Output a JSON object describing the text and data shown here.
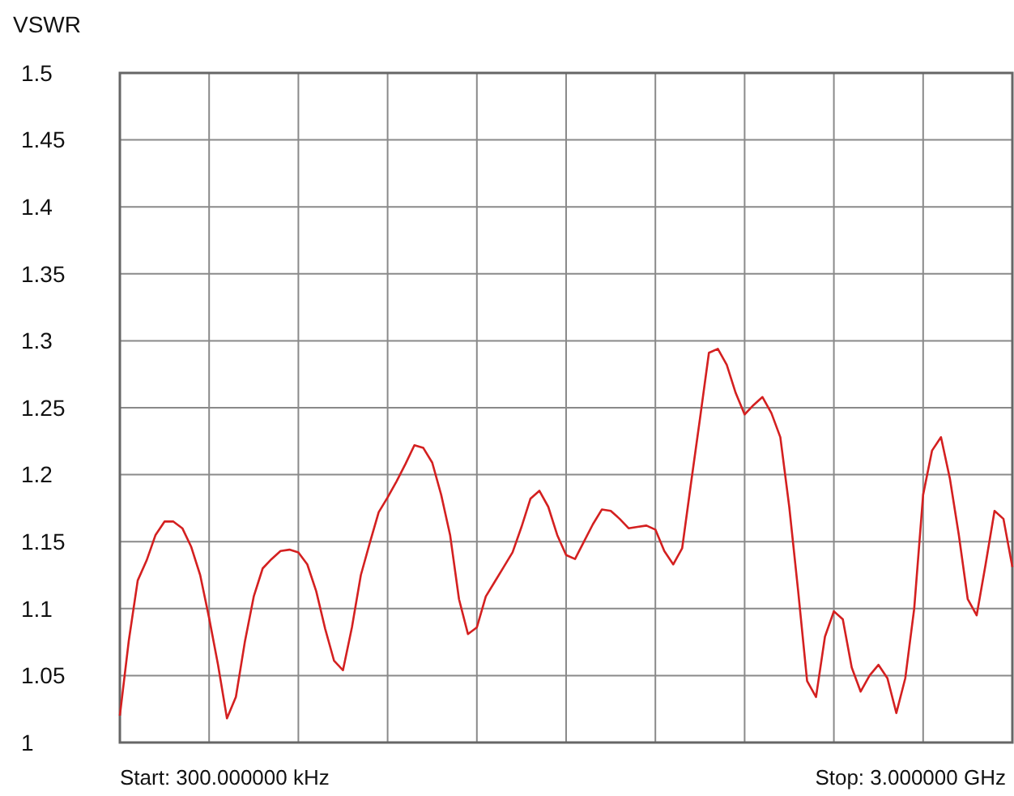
{
  "chart_data": {
    "type": "line",
    "ylabel": "VSWR",
    "categories": [
      null,
      null,
      null,
      null,
      null,
      null,
      null,
      null,
      null,
      null,
      null,
      null,
      null,
      null,
      null,
      null,
      null,
      null,
      null,
      null,
      null,
      null,
      null,
      null,
      null,
      null,
      null,
      null,
      null,
      null,
      null,
      null,
      null,
      null,
      null,
      null,
      null,
      null,
      null,
      null,
      null,
      null,
      null,
      null,
      null,
      null,
      null,
      null,
      null,
      null,
      null,
      null,
      null,
      null,
      null,
      null,
      null,
      null,
      null,
      null,
      null,
      null,
      null,
      null,
      null,
      null,
      null,
      null,
      null,
      null,
      null,
      null,
      null,
      null,
      null,
      null,
      null,
      null,
      null,
      null,
      null,
      null,
      null,
      null,
      null,
      null,
      null,
      null,
      null,
      null,
      null,
      null,
      null,
      null,
      null,
      null,
      null,
      null,
      null,
      null,
      null
    ],
    "series": [
      {
        "color": "#d42020",
        "values": [
          1.02,
          1.076,
          1.121,
          1.136,
          1.155,
          1.165,
          1.165,
          1.16,
          1.146,
          1.125,
          1.093,
          1.058,
          1.018,
          1.034,
          1.075,
          1.109,
          1.13,
          1.137,
          1.143,
          1.144,
          1.142,
          1.133,
          1.113,
          1.085,
          1.061,
          1.054,
          1.086,
          1.125,
          1.149,
          1.172,
          1.183,
          1.195,
          1.208,
          1.222,
          1.22,
          1.209,
          1.185,
          1.155,
          1.107,
          1.081,
          1.086,
          1.109,
          1.12,
          1.131,
          1.142,
          1.161,
          1.182,
          1.188,
          1.176,
          1.155,
          1.14,
          1.137,
          1.15,
          1.163,
          1.174,
          1.173,
          1.167,
          1.16,
          1.161,
          1.162,
          1.159,
          1.143,
          1.133,
          1.145,
          1.194,
          1.242,
          1.291,
          1.294,
          1.282,
          1.261,
          1.245,
          1.252,
          1.258,
          1.246,
          1.228,
          1.176,
          1.113,
          1.046,
          1.034,
          1.079,
          1.098,
          1.092,
          1.056,
          1.038,
          1.05,
          1.058,
          1.048,
          1.022,
          1.048,
          1.1,
          1.185,
          1.218,
          1.228,
          1.197,
          1.155,
          1.107,
          1.095,
          1.133,
          1.173,
          1.167,
          1.131
        ]
      }
    ],
    "ylim": [
      1,
      1.5
    ],
    "yticks": [
      1,
      1.05,
      1.1,
      1.15,
      1.2,
      1.25,
      1.3,
      1.35,
      1.4,
      1.45,
      1.5
    ],
    "grid": true,
    "marker": "none",
    "line_style": "solid",
    "tick_labels": "y",
    "annotations": [
      "Start: 300.000000 kHz",
      "Stop: 3.000000 GHz"
    ]
  }
}
